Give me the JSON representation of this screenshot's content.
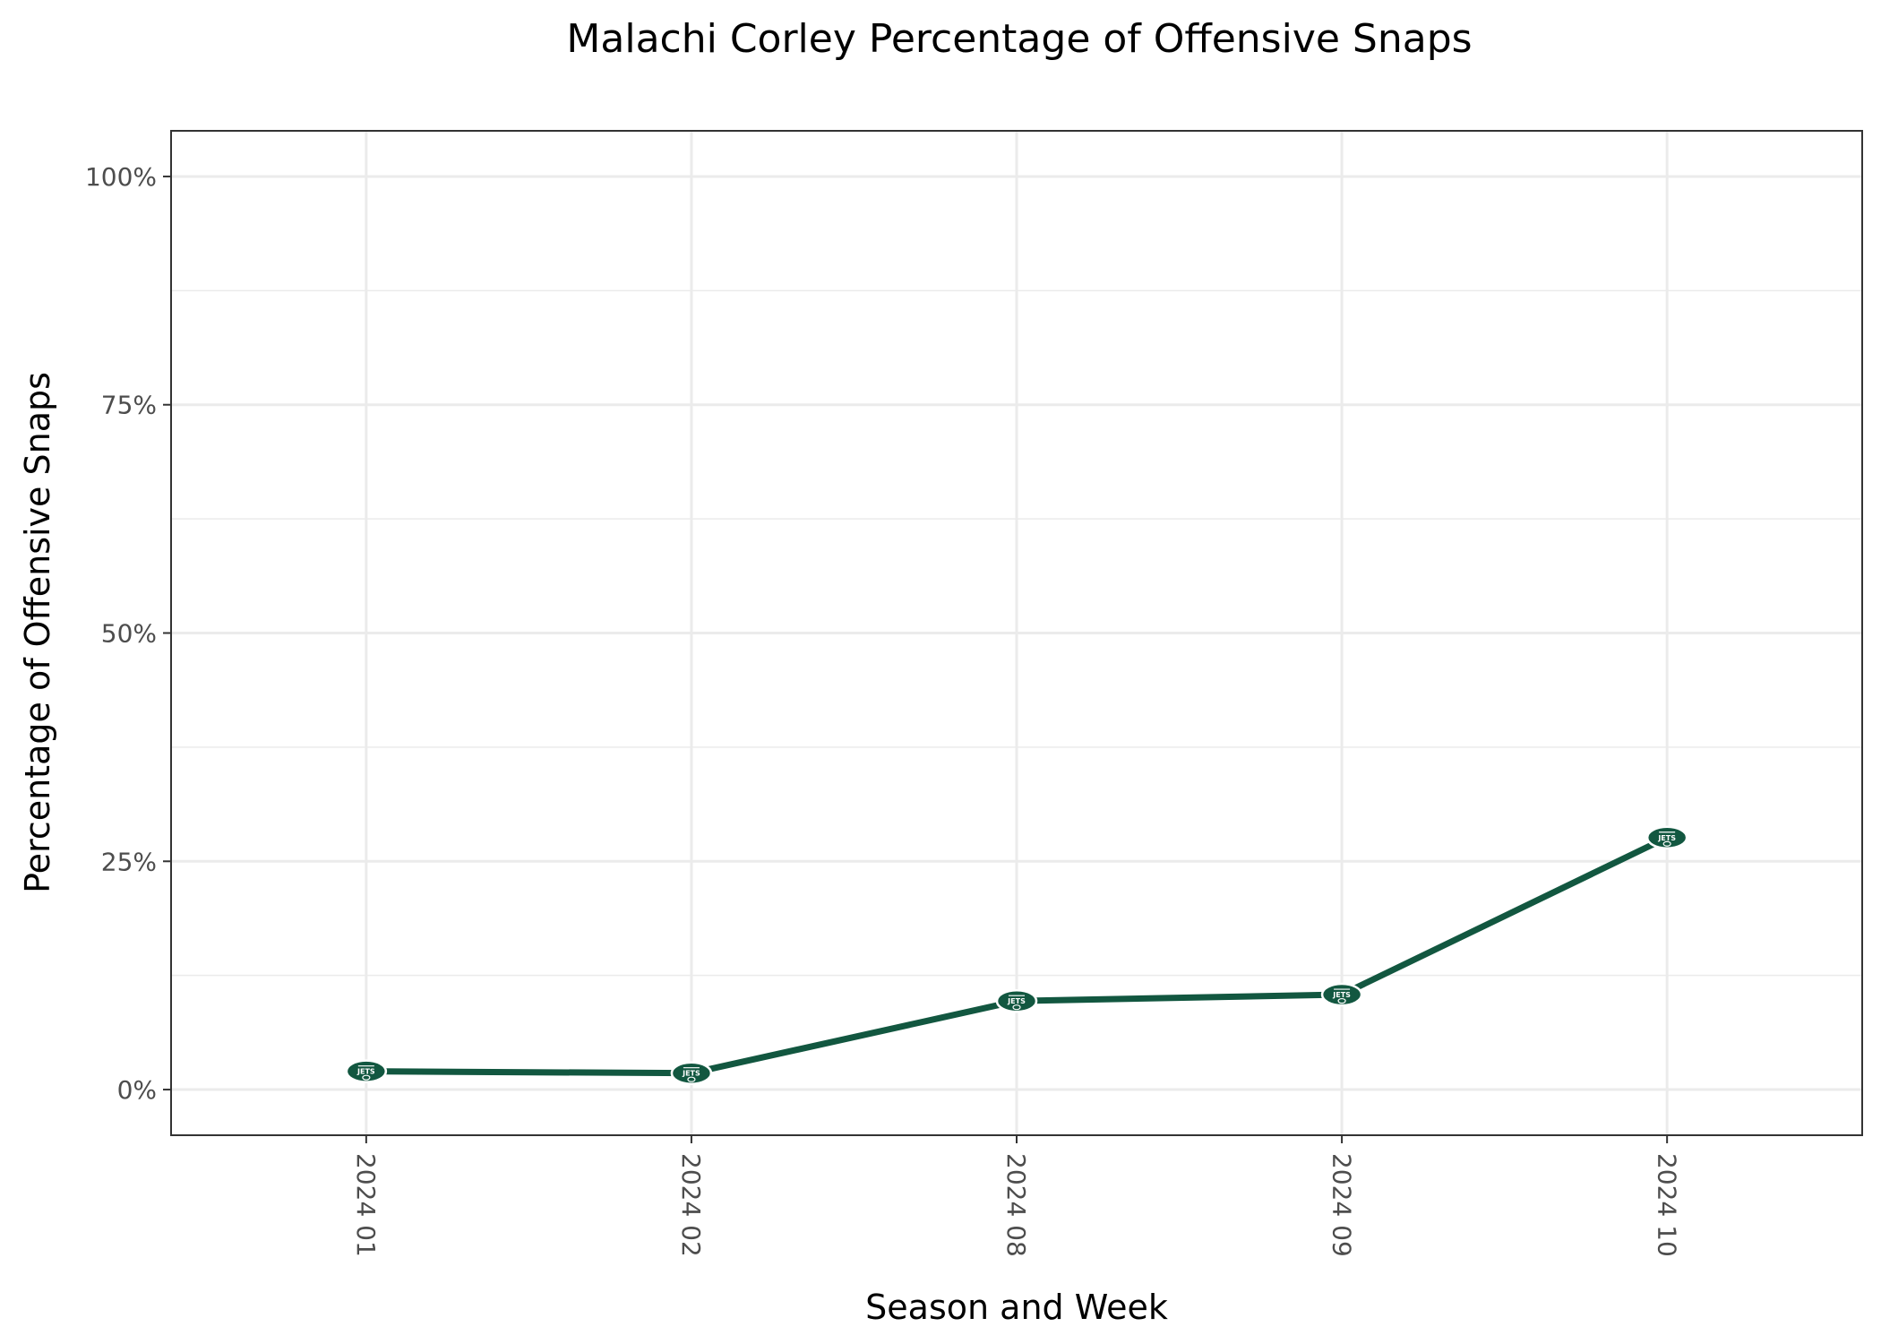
{
  "chart_data": {
    "type": "line",
    "title": "Malachi Corley Percentage of Offensive Snaps",
    "xlabel": "Season and Week",
    "ylabel": "Percentage of Offensive Snaps",
    "categories": [
      "2024 01",
      "2024 02",
      "2024 08",
      "2024 09",
      "2024 10"
    ],
    "series": [
      {
        "values": [
          2.0,
          1.8,
          9.7,
          10.4,
          27.6
        ]
      }
    ],
    "ylim": [
      -5,
      105
    ],
    "yticks": [
      0,
      25,
      50,
      75,
      100
    ],
    "ytick_labels": [
      "0%",
      "25%",
      "50%",
      "75%",
      "100%"
    ],
    "grid": true,
    "legend": "none",
    "line_color": "#125740",
    "marker_icon": "jets-team-logo-icon",
    "marker_text": "JETS"
  }
}
